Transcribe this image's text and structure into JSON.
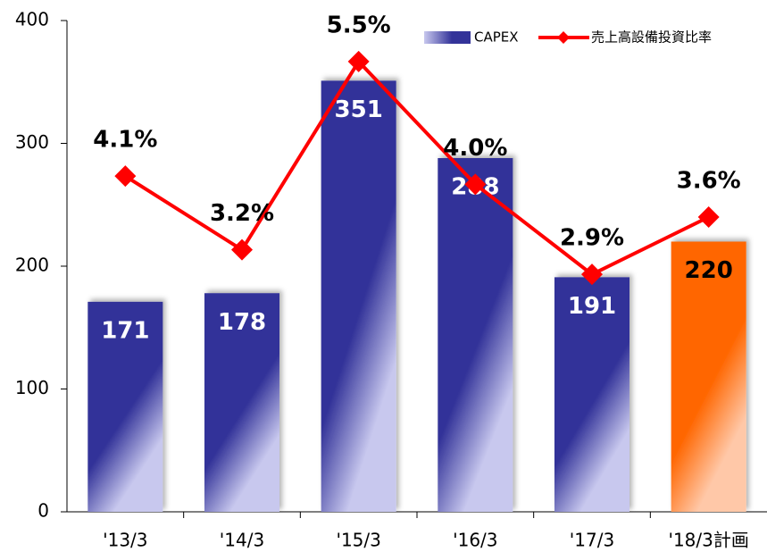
{
  "chart_data": {
    "type": "bar_line",
    "categories": [
      "'13/3",
      "'14/3",
      "'15/3",
      "'16/3",
      "'17/3",
      "'18/3計画"
    ],
    "series": [
      {
        "name": "CAPEX",
        "type": "bar",
        "color": "#333399",
        "colors": [
          "#333399",
          "#333399",
          "#333399",
          "#333399",
          "#333399",
          "#ff6600"
        ],
        "label_colors": [
          "#ffffff",
          "#ffffff",
          "#ffffff",
          "#ffffff",
          "#ffffff",
          "#000000"
        ],
        "values": [
          171,
          178,
          351,
          288,
          191,
          220
        ]
      },
      {
        "name": "売上高設備投資比率",
        "type": "line",
        "axis": "y2",
        "color": "#ff0000",
        "values": [
          4.1,
          3.2,
          5.5,
          4.0,
          2.9,
          3.6
        ],
        "value_labels": [
          "4.1%",
          "3.2%",
          "5.5%",
          "4.0%",
          "2.9%",
          "3.6%"
        ]
      }
    ],
    "ylim": [
      0,
      400
    ],
    "yticks": [
      0,
      100,
      200,
      300,
      400
    ],
    "y2lim": [
      0,
      6
    ],
    "legend": "top-right"
  }
}
